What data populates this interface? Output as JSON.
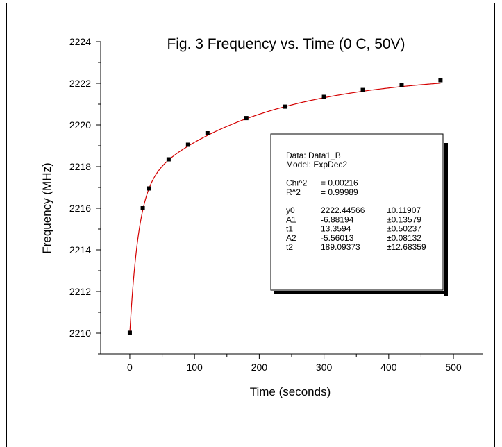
{
  "chart_data": {
    "type": "scatter",
    "title": "Fig. 3  Frequency vs. Time (0 C, 50V)",
    "xlabel": "Time (seconds)",
    "ylabel": "Frequency (MHz)",
    "xlim": [
      -45,
      545
    ],
    "ylim": [
      2209,
      2224
    ],
    "xticks": [
      0,
      100,
      200,
      300,
      400,
      500
    ],
    "yticks": [
      2210,
      2212,
      2214,
      2216,
      2218,
      2220,
      2222,
      2224
    ],
    "grid": false,
    "series": [
      {
        "values": [
          {
            "x": 0,
            "y": 2210.02
          },
          {
            "x": 20,
            "y": 2216.0
          },
          {
            "x": 30,
            "y": 2216.95
          },
          {
            "x": 60,
            "y": 2218.35
          },
          {
            "x": 90,
            "y": 2219.05
          },
          {
            "x": 120,
            "y": 2219.6
          },
          {
            "x": 180,
            "y": 2220.33
          },
          {
            "x": 240,
            "y": 2220.88
          },
          {
            "x": 300,
            "y": 2221.35
          },
          {
            "x": 360,
            "y": 2221.68
          },
          {
            "x": 420,
            "y": 2221.92
          },
          {
            "x": 480,
            "y": 2222.15
          }
        ],
        "marker": "square",
        "color": "#000000"
      }
    ],
    "fit": {
      "model": "ExpDec2",
      "color": "#d40000",
      "y0": 2222.44566,
      "A1": -6.88194,
      "t1": 13.3594,
      "A2": -5.56013,
      "t2": 189.09373,
      "x_range": [
        0,
        480
      ]
    },
    "annotation_box": {
      "position": "right-middle",
      "lines": [
        {
          "label": "Data: Data1_B",
          "value": "",
          "error": ""
        },
        {
          "label": "Model: ExpDec2",
          "value": "",
          "error": ""
        },
        {
          "label": "",
          "value": "",
          "error": ""
        },
        {
          "label": "Chi^2",
          "value": "= 0.00216",
          "error": ""
        },
        {
          "label": "R^2",
          "value": "= 0.99989",
          "error": ""
        },
        {
          "label": "",
          "value": "",
          "error": ""
        },
        {
          "label": "y0",
          "value": "2222.44566",
          "error": "±0.11907"
        },
        {
          "label": "A1",
          "value": "-6.88194",
          "error": "±0.13579"
        },
        {
          "label": "t1",
          "value": "13.3594",
          "error": "±0.50237"
        },
        {
          "label": "A2",
          "value": "-5.56013",
          "error": "±0.08132"
        },
        {
          "label": "t2",
          "value": "189.09373",
          "error": "±12.68359"
        }
      ]
    }
  }
}
